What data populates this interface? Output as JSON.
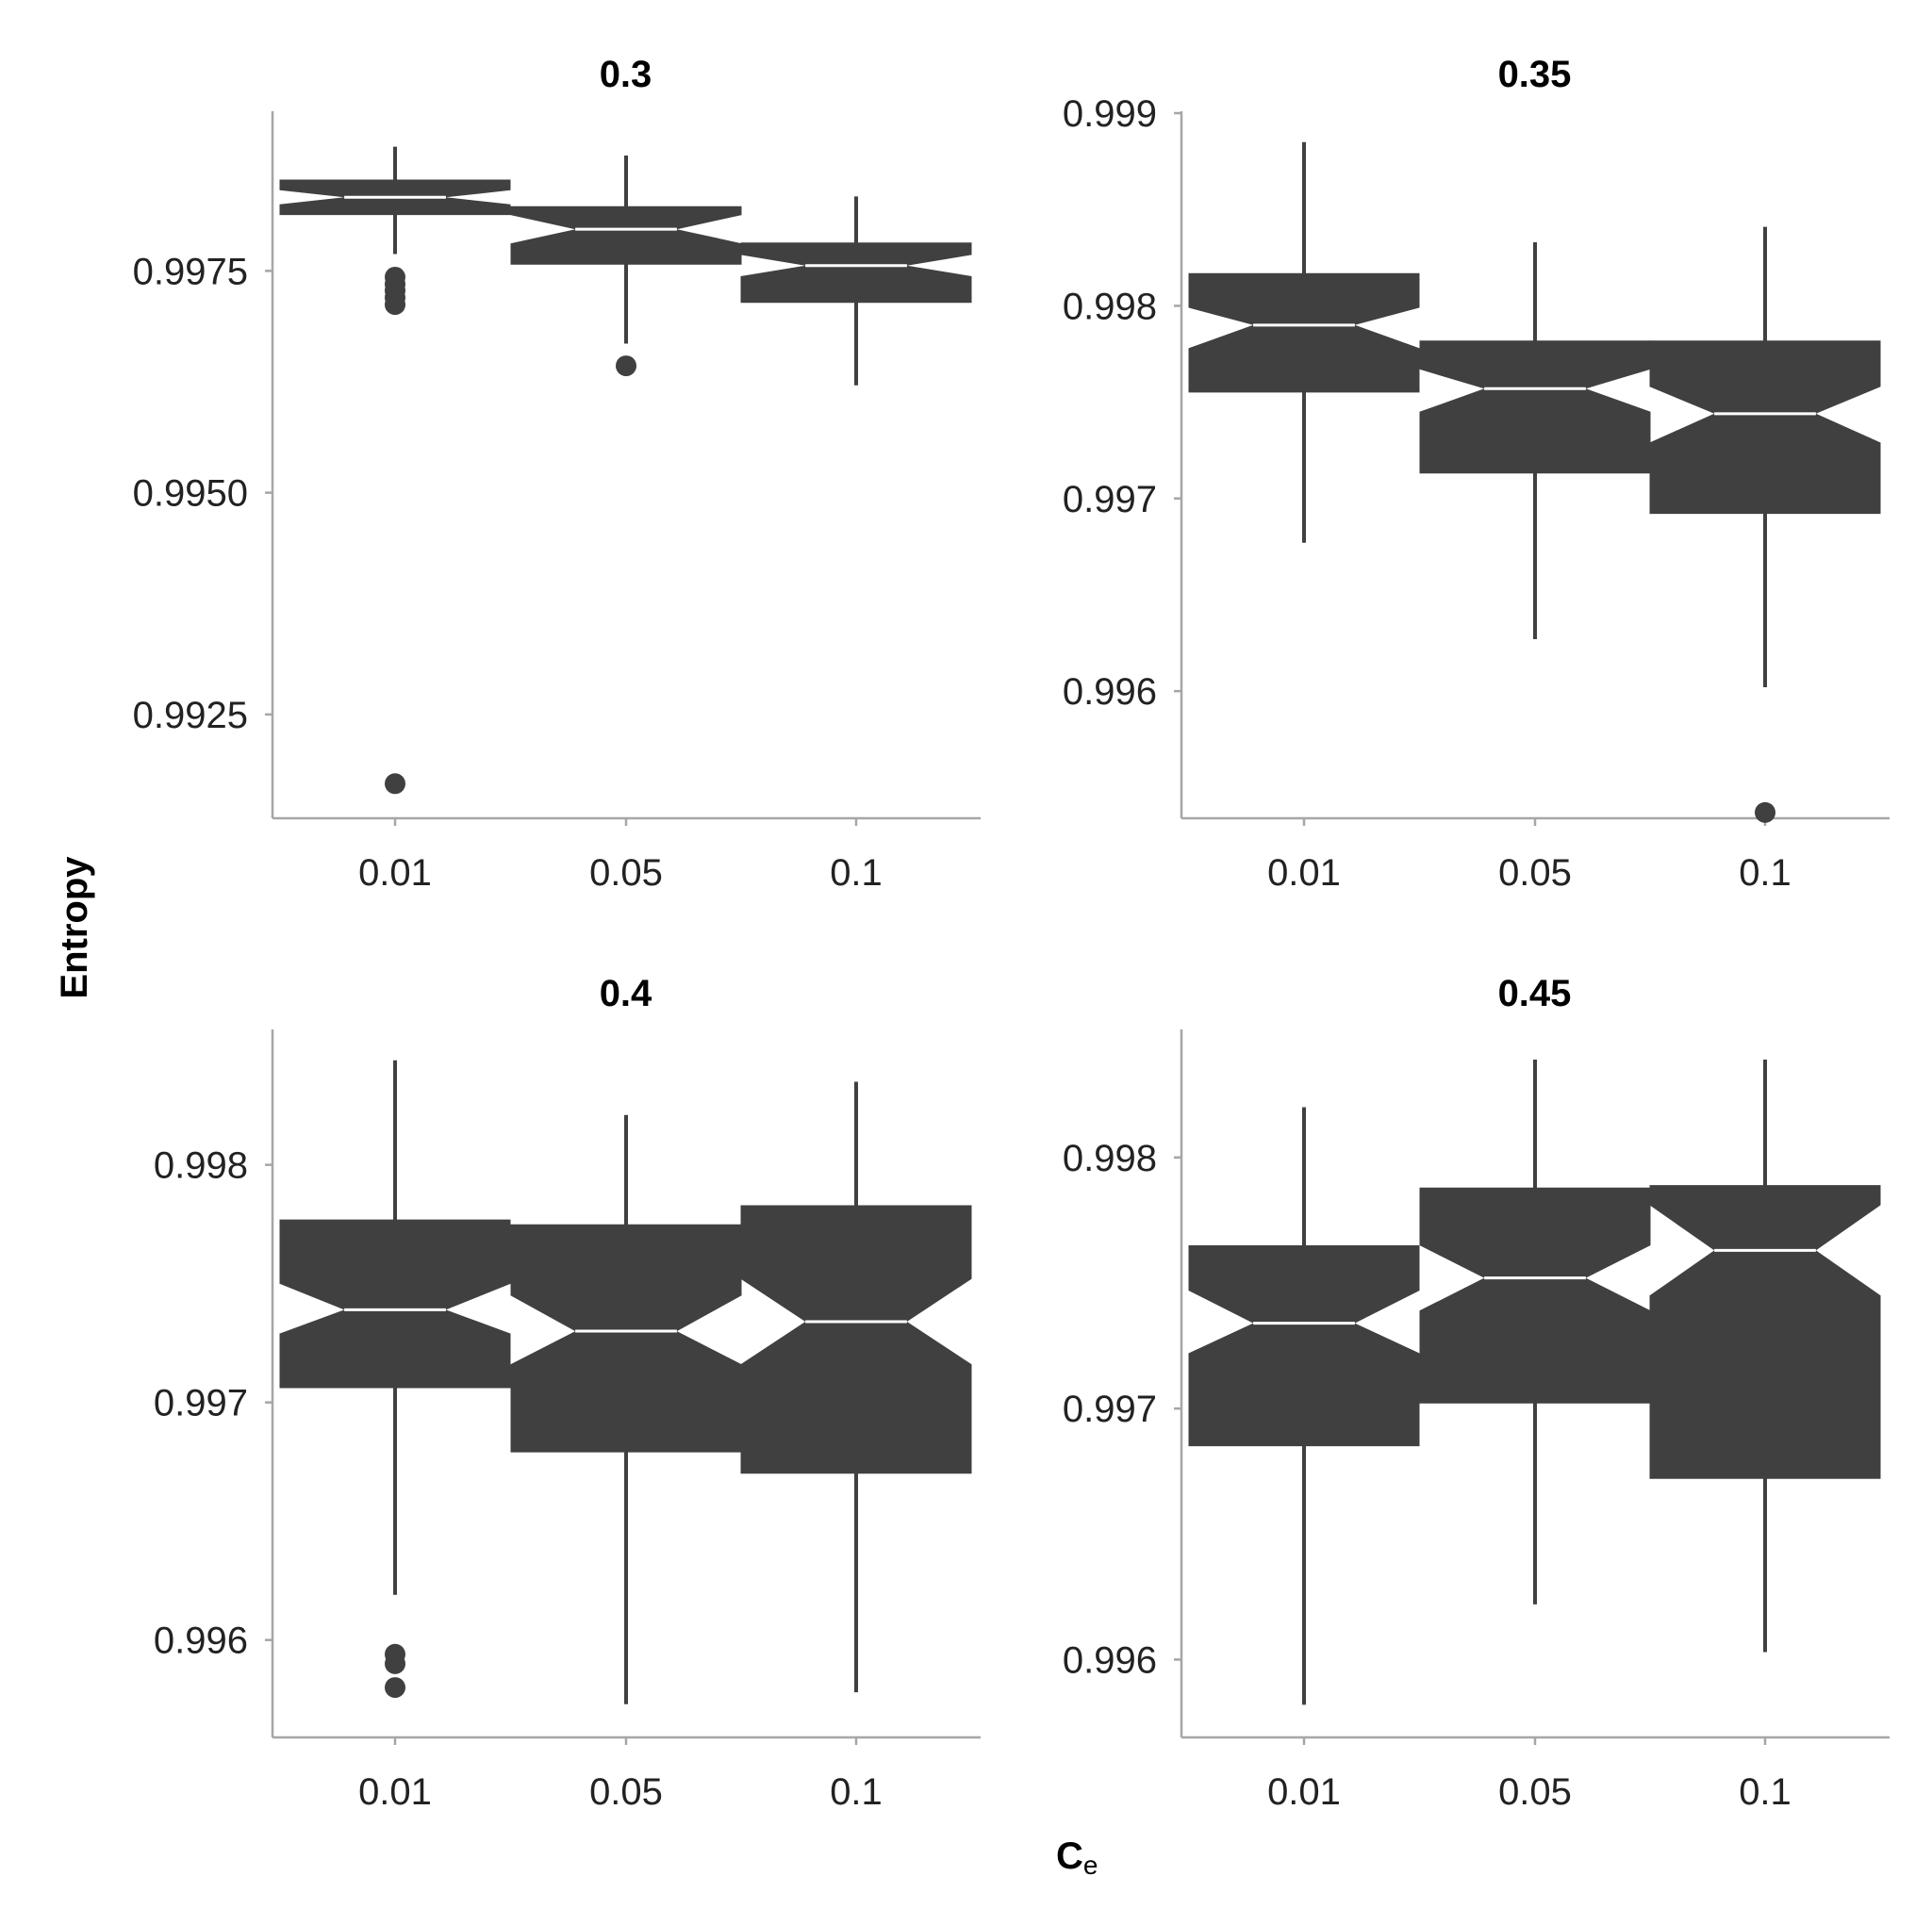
{
  "chart_data": {
    "type": "boxplot",
    "title": "",
    "xlabel_main": "C",
    "xlabel_sub": "e",
    "ylabel": "Entropy",
    "colors": {
      "box": "#404040",
      "median": "#ffffff",
      "axis": "#a6a6a6",
      "text": "#222222"
    },
    "categories": [
      "0.01",
      "0.05",
      "0.1"
    ],
    "panels": [
      {
        "title": "0.3",
        "ylim": [
          0.99133,
          0.9993
        ],
        "yticks": [
          0.9925,
          0.995,
          0.9975
        ],
        "ytick_labels": [
          "0.9925",
          "0.9950",
          "0.9975"
        ],
        "boxes": [
          {
            "category": "0.01",
            "whisker_low": 0.99769,
            "q1": 0.99813,
            "median": 0.99833,
            "q3": 0.99853,
            "whisker_high": 0.9989,
            "notch_low": 0.99825,
            "notch_high": 0.99841,
            "outliers": [
              0.99743,
              0.99735,
              0.99728,
              0.9972,
              0.99712,
              0.99172
            ]
          },
          {
            "category": "0.05",
            "whisker_low": 0.99668,
            "q1": 0.99757,
            "median": 0.99797,
            "q3": 0.99823,
            "whisker_high": 0.9988,
            "notch_low": 0.99781,
            "notch_high": 0.99813,
            "outliers": [
              0.99643
            ]
          },
          {
            "category": "0.1",
            "whisker_low": 0.99621,
            "q1": 0.99714,
            "median": 0.99756,
            "q3": 0.99782,
            "whisker_high": 0.99834,
            "notch_low": 0.99744,
            "notch_high": 0.99768,
            "outliers": []
          }
        ]
      },
      {
        "title": "0.35",
        "ylim": [
          0.99534,
          0.99901
        ],
        "yticks": [
          0.996,
          0.997,
          0.998,
          0.999
        ],
        "ytick_labels": [
          "0.996",
          "0.997",
          "0.998",
          "0.999"
        ],
        "boxes": [
          {
            "category": "0.01",
            "whisker_low": 0.99677,
            "q1": 0.99755,
            "median": 0.9979,
            "q3": 0.99817,
            "whisker_high": 0.99885,
            "notch_low": 0.99778,
            "notch_high": 0.99799,
            "outliers": []
          },
          {
            "category": "0.05",
            "whisker_low": 0.99627,
            "q1": 0.99713,
            "median": 0.99757,
            "q3": 0.99782,
            "whisker_high": 0.99833,
            "notch_low": 0.99745,
            "notch_high": 0.99767,
            "outliers": []
          },
          {
            "category": "0.1",
            "whisker_low": 0.99602,
            "q1": 0.99692,
            "median": 0.99744,
            "q3": 0.99782,
            "whisker_high": 0.99841,
            "notch_low": 0.99729,
            "notch_high": 0.99758,
            "outliers": [
              0.99537
            ]
          }
        ]
      },
      {
        "title": "0.4",
        "ylim": [
          0.99559,
          0.99857
        ],
        "yticks": [
          0.996,
          0.997,
          0.998
        ],
        "ytick_labels": [
          "0.996",
          "0.997",
          "0.998"
        ],
        "boxes": [
          {
            "category": "0.01",
            "whisker_low": 0.99619,
            "q1": 0.99706,
            "median": 0.99739,
            "q3": 0.99777,
            "whisker_high": 0.99844,
            "notch_low": 0.99729,
            "notch_high": 0.9975,
            "outliers": [
              0.99594,
              0.9959,
              0.9958
            ]
          },
          {
            "category": "0.05",
            "whisker_low": 0.99573,
            "q1": 0.99679,
            "median": 0.9973,
            "q3": 0.99775,
            "whisker_high": 0.99821,
            "notch_low": 0.99716,
            "notch_high": 0.99745,
            "outliers": []
          },
          {
            "category": "0.1",
            "whisker_low": 0.99578,
            "q1": 0.9967,
            "median": 0.99734,
            "q3": 0.99783,
            "whisker_high": 0.99835,
            "notch_low": 0.99716,
            "notch_high": 0.99752,
            "outliers": []
          }
        ]
      },
      {
        "title": "0.45",
        "ylim": [
          0.99569,
          0.99851
        ],
        "yticks": [
          0.996,
          0.997,
          0.998
        ],
        "ytick_labels": [
          "0.996",
          "0.997",
          "0.998"
        ],
        "boxes": [
          {
            "category": "0.01",
            "whisker_low": 0.99582,
            "q1": 0.99685,
            "median": 0.99734,
            "q3": 0.99765,
            "whisker_high": 0.9982,
            "notch_low": 0.99722,
            "notch_high": 0.99747,
            "outliers": []
          },
          {
            "category": "0.05",
            "whisker_low": 0.99622,
            "q1": 0.99702,
            "median": 0.99752,
            "q3": 0.99788,
            "whisker_high": 0.99839,
            "notch_low": 0.99739,
            "notch_high": 0.99765,
            "outliers": []
          },
          {
            "category": "0.1",
            "whisker_low": 0.99603,
            "q1": 0.99672,
            "median": 0.99763,
            "q3": 0.99789,
            "whisker_high": 0.99839,
            "notch_low": 0.99745,
            "notch_high": 0.99781,
            "outliers": []
          }
        ]
      }
    ]
  }
}
